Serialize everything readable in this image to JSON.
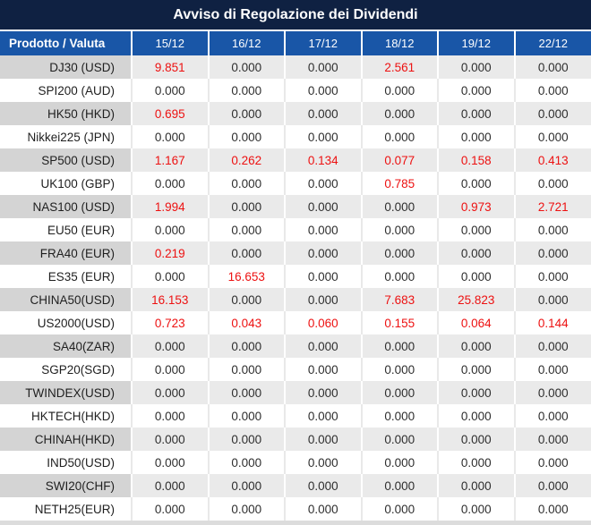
{
  "title": "Avviso di Regolazione dei Dividendi",
  "table": {
    "product_header": "Prodotto / Valuta",
    "date_headers": [
      "15/12",
      "16/12",
      "17/12",
      "18/12",
      "19/12",
      "22/12"
    ],
    "rows": [
      {
        "product": "DJ30 (USD)",
        "values": [
          "9.851",
          "0.000",
          "0.000",
          "2.561",
          "0.000",
          "0.000"
        ]
      },
      {
        "product": "SPI200 (AUD)",
        "values": [
          "0.000",
          "0.000",
          "0.000",
          "0.000",
          "0.000",
          "0.000"
        ]
      },
      {
        "product": "HK50 (HKD)",
        "values": [
          "0.695",
          "0.000",
          "0.000",
          "0.000",
          "0.000",
          "0.000"
        ]
      },
      {
        "product": "Nikkei225 (JPN)",
        "values": [
          "0.000",
          "0.000",
          "0.000",
          "0.000",
          "0.000",
          "0.000"
        ]
      },
      {
        "product": "SP500 (USD)",
        "values": [
          "1.167",
          "0.262",
          "0.134",
          "0.077",
          "0.158",
          "0.413"
        ]
      },
      {
        "product": "UK100 (GBP)",
        "values": [
          "0.000",
          "0.000",
          "0.000",
          "0.785",
          "0.000",
          "0.000"
        ]
      },
      {
        "product": "NAS100 (USD)",
        "values": [
          "1.994",
          "0.000",
          "0.000",
          "0.000",
          "0.973",
          "2.721"
        ]
      },
      {
        "product": "EU50 (EUR)",
        "values": [
          "0.000",
          "0.000",
          "0.000",
          "0.000",
          "0.000",
          "0.000"
        ]
      },
      {
        "product": "FRA40 (EUR)",
        "values": [
          "0.219",
          "0.000",
          "0.000",
          "0.000",
          "0.000",
          "0.000"
        ]
      },
      {
        "product": "ES35 (EUR)",
        "values": [
          "0.000",
          "16.653",
          "0.000",
          "0.000",
          "0.000",
          "0.000"
        ]
      },
      {
        "product": "CHINA50(USD)",
        "values": [
          "16.153",
          "0.000",
          "0.000",
          "7.683",
          "25.823",
          "0.000"
        ]
      },
      {
        "product": "US2000(USD)",
        "values": [
          "0.723",
          "0.043",
          "0.060",
          "0.155",
          "0.064",
          "0.144"
        ]
      },
      {
        "product": "SA40(ZAR)",
        "values": [
          "0.000",
          "0.000",
          "0.000",
          "0.000",
          "0.000",
          "0.000"
        ]
      },
      {
        "product": "SGP20(SGD)",
        "values": [
          "0.000",
          "0.000",
          "0.000",
          "0.000",
          "0.000",
          "0.000"
        ]
      },
      {
        "product": "TWINDEX(USD)",
        "values": [
          "0.000",
          "0.000",
          "0.000",
          "0.000",
          "0.000",
          "0.000"
        ]
      },
      {
        "product": "HKTECH(HKD)",
        "values": [
          "0.000",
          "0.000",
          "0.000",
          "0.000",
          "0.000",
          "0.000"
        ]
      },
      {
        "product": "CHINAH(HKD)",
        "values": [
          "0.000",
          "0.000",
          "0.000",
          "0.000",
          "0.000",
          "0.000"
        ]
      },
      {
        "product": "IND50(USD)",
        "values": [
          "0.000",
          "0.000",
          "0.000",
          "0.000",
          "0.000",
          "0.000"
        ]
      },
      {
        "product": "SWI20(CHF)",
        "values": [
          "0.000",
          "0.000",
          "0.000",
          "0.000",
          "0.000",
          "0.000"
        ]
      },
      {
        "product": "NETH25(EUR)",
        "values": [
          "0.000",
          "0.000",
          "0.000",
          "0.000",
          "0.000",
          "0.000"
        ]
      }
    ]
  },
  "colors": {
    "title_bg": "#0f2142",
    "header_bg": "#1956a7",
    "gray_row_product_bg": "#d4d4d4",
    "gray_row_value_bg": "#eaeaea",
    "nonzero_value": "#ed1111",
    "zero_value": "#2e2e2e"
  }
}
